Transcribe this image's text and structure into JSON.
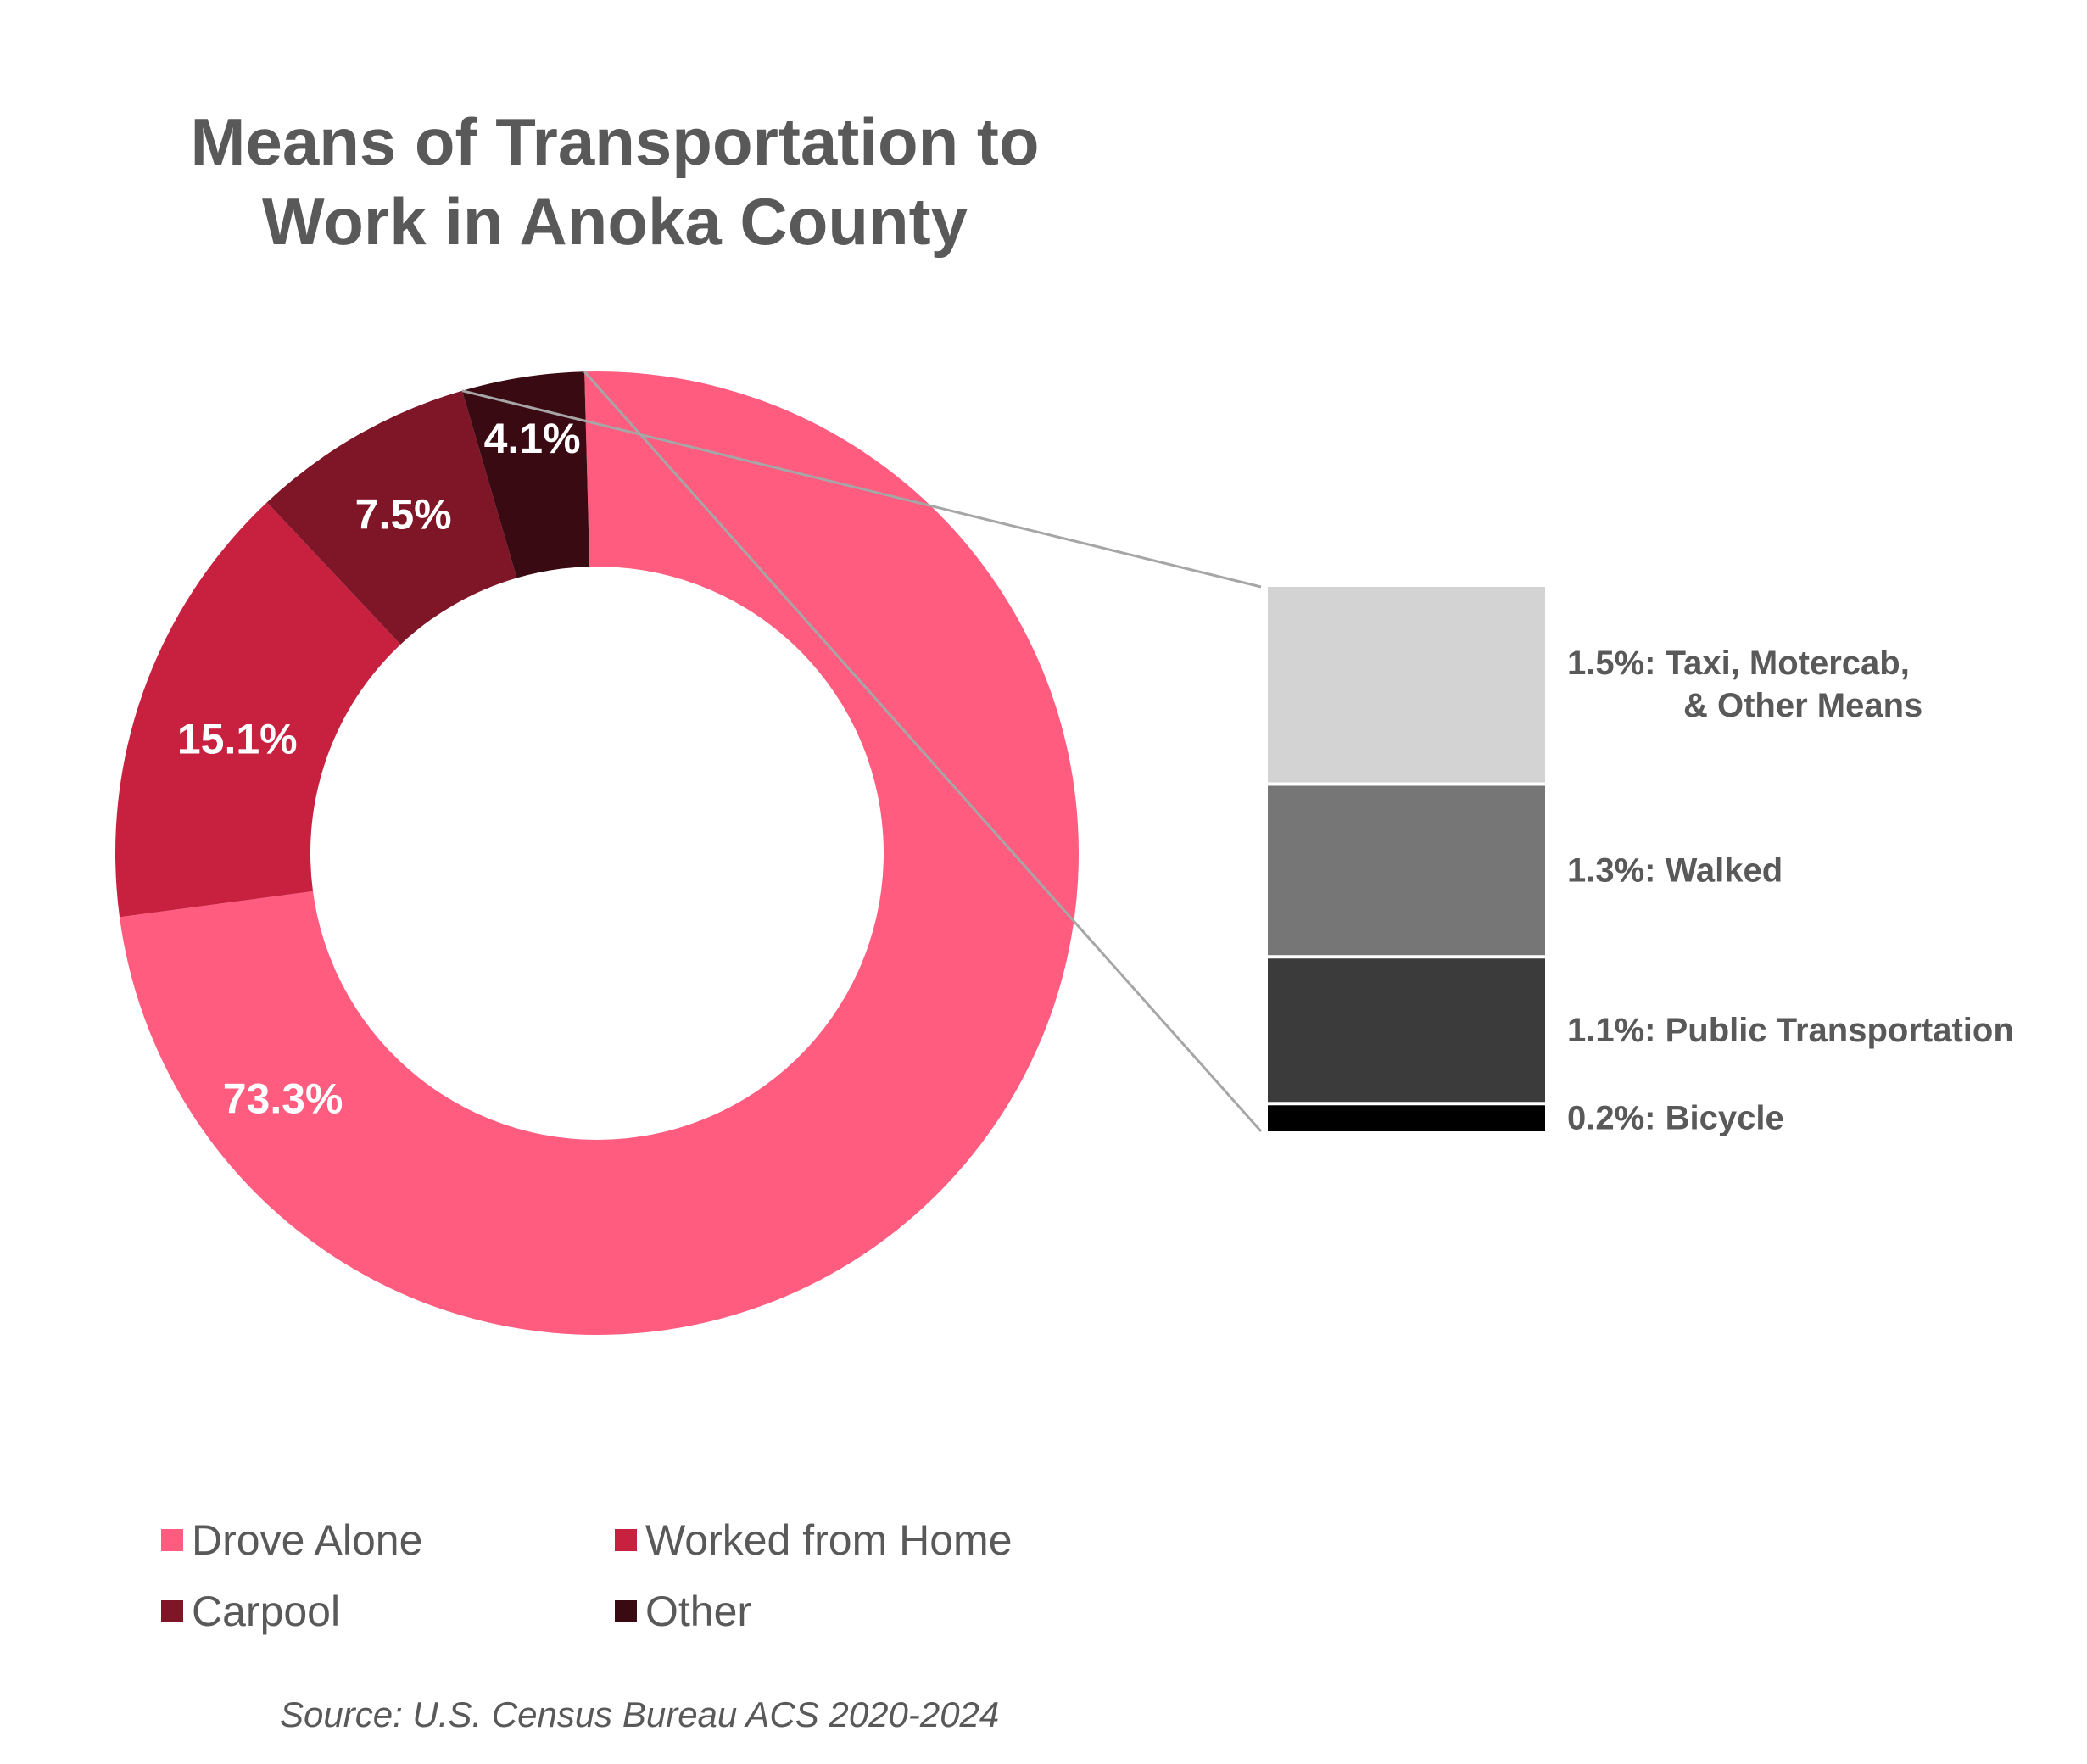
{
  "title_lines": [
    "Means of Transportation to",
    "Work in Anoka County"
  ],
  "colors": {
    "drove_alone": "#FF5C7F",
    "worked_from_home": "#C8203F",
    "carpool": "#7E1628",
    "other": "#3A0A12",
    "text": "#595959",
    "connector": "#A6A6A6"
  },
  "chart_data": [
    {
      "type": "pie",
      "variant": "donut",
      "slices": [
        {
          "name": "Drove Alone",
          "value": 73.3,
          "label": "73.3%",
          "color": "#FF5C7F"
        },
        {
          "name": "Worked from Home",
          "value": 15.1,
          "label": "15.1%",
          "color": "#C8203F"
        },
        {
          "name": "Carpool",
          "value": 7.5,
          "label": "7.5%",
          "color": "#7E1628"
        },
        {
          "name": "Other",
          "value": 4.1,
          "label": "4.1%",
          "color": "#3A0A12"
        }
      ],
      "legend_position": "bottom"
    },
    {
      "type": "bar",
      "variant": "stacked-breakdown-of-Other",
      "segments": [
        {
          "value": 1.5,
          "label_lines": [
            "1.5%: Taxi, Motercab,",
            "& Other Means"
          ],
          "color": "#D3D3D3"
        },
        {
          "value": 1.3,
          "label_lines": [
            "1.3%: Walked"
          ],
          "color": "#767676"
        },
        {
          "value": 1.1,
          "label_lines": [
            "1.1%: Public Transportation"
          ],
          "color": "#3B3B3B"
        },
        {
          "value": 0.2,
          "label_lines": [
            "0.2%: Bicycle"
          ],
          "color": "#000000"
        }
      ]
    }
  ],
  "legend": [
    {
      "label": "Drove Alone",
      "color": "#FF5C7F"
    },
    {
      "label": "Worked from Home",
      "color": "#C8203F"
    },
    {
      "label": "Carpool",
      "color": "#7E1628"
    },
    {
      "label": "Other",
      "color": "#3A0A12"
    }
  ],
  "source": "Source: U.S. Census Bureau ACS 2020-2024"
}
